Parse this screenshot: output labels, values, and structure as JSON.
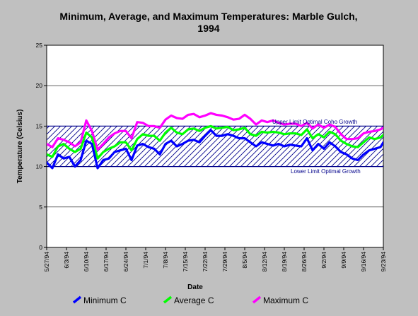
{
  "colors": {
    "background": "#c0c0c0",
    "plot_background": "#ffffff",
    "minimum": "#0000ff",
    "average": "#00ff00",
    "maximum": "#ff00ff",
    "band": "#00008b"
  },
  "chart_data": {
    "type": "line",
    "title": "Minimum, Average, and Maximum Temperatures: Marble Gulch, 1994",
    "title_lines": [
      "Minimum, Average, and Maximum Temperatures: Marble Gulch,",
      "1994"
    ],
    "xlabel": "Date",
    "ylabel": "Temperature (Celsius)",
    "ylim": [
      0,
      25
    ],
    "yticks": [
      0,
      5,
      10,
      15,
      20,
      25
    ],
    "xlim": [
      "1994-05-27",
      "1994-09-23"
    ],
    "x_tick_labels": [
      "5/27/94",
      "6/3/94",
      "6/10/94",
      "6/17/94",
      "6/24/94",
      "7/1/94",
      "7/8/94",
      "7/15/94",
      "7/22/94",
      "7/29/94",
      "8/5/94",
      "8/12/94",
      "8/19/94",
      "8/26/94",
      "9/2/94",
      "9/9/94",
      "9/16/94",
      "9/23/94"
    ],
    "grid": "horizontal",
    "legend_position": "bottom",
    "x": [
      "1994-05-27",
      "1994-05-29",
      "1994-05-31",
      "1994-06-02",
      "1994-06-04",
      "1994-06-06",
      "1994-06-08",
      "1994-06-10",
      "1994-06-12",
      "1994-06-14",
      "1994-06-16",
      "1994-06-18",
      "1994-06-20",
      "1994-06-22",
      "1994-06-24",
      "1994-06-26",
      "1994-06-28",
      "1994-06-30",
      "1994-07-02",
      "1994-07-04",
      "1994-07-06",
      "1994-07-08",
      "1994-07-10",
      "1994-07-12",
      "1994-07-14",
      "1994-07-16",
      "1994-07-18",
      "1994-07-20",
      "1994-07-22",
      "1994-07-24",
      "1994-07-26",
      "1994-07-28",
      "1994-07-30",
      "1994-08-01",
      "1994-08-03",
      "1994-08-05",
      "1994-08-07",
      "1994-08-09",
      "1994-08-11",
      "1994-08-13",
      "1994-08-15",
      "1994-08-17",
      "1994-08-19",
      "1994-08-21",
      "1994-08-23",
      "1994-08-25",
      "1994-08-27",
      "1994-08-29",
      "1994-08-31",
      "1994-09-02",
      "1994-09-04",
      "1994-09-06",
      "1994-09-08",
      "1994-09-10",
      "1994-09-12",
      "1994-09-14",
      "1994-09-16",
      "1994-09-18",
      "1994-09-20",
      "1994-09-22",
      "1994-09-23"
    ],
    "series": [
      {
        "name": "Minimum C",
        "color": "#0000ff",
        "values": [
          10.5,
          9.8,
          11.5,
          11.0,
          11.2,
          10.0,
          10.8,
          13.2,
          12.8,
          9.8,
          10.8,
          11.0,
          11.8,
          12.0,
          12.2,
          10.8,
          12.6,
          12.8,
          12.4,
          12.2,
          11.5,
          12.8,
          13.2,
          12.5,
          12.8,
          13.2,
          13.3,
          13.0,
          13.8,
          14.5,
          13.8,
          13.8,
          14.0,
          13.8,
          13.5,
          13.5,
          13.0,
          12.5,
          13.0,
          12.8,
          12.6,
          12.8,
          12.5,
          12.7,
          12.6,
          12.5,
          13.5,
          12.0,
          12.8,
          12.2,
          13.0,
          12.5,
          11.8,
          11.5,
          11.0,
          10.8,
          11.5,
          12.0,
          12.2,
          12.4,
          13.0
        ]
      },
      {
        "name": "Average C",
        "color": "#00ff00",
        "values": [
          11.5,
          11.2,
          12.5,
          12.8,
          12.2,
          11.8,
          12.2,
          14.2,
          13.6,
          11.0,
          11.8,
          12.2,
          12.5,
          13.0,
          13.0,
          12.0,
          13.4,
          14.0,
          13.8,
          13.8,
          13.2,
          14.2,
          14.8,
          14.2,
          14.0,
          14.6,
          14.7,
          14.4,
          14.8,
          15.0,
          14.7,
          14.8,
          14.9,
          14.5,
          14.6,
          14.8,
          14.0,
          13.8,
          14.3,
          14.2,
          14.3,
          14.2,
          14.0,
          14.1,
          14.1,
          13.9,
          14.6,
          13.5,
          14.0,
          13.6,
          14.3,
          14.0,
          13.2,
          12.8,
          12.5,
          12.4,
          13.0,
          13.6,
          13.4,
          13.6,
          13.9
        ]
      },
      {
        "name": "Maximum C",
        "color": "#ff00ff",
        "values": [
          12.8,
          12.4,
          13.5,
          13.3,
          13.0,
          12.5,
          13.0,
          15.7,
          14.4,
          12.1,
          12.8,
          13.6,
          14.1,
          14.4,
          14.4,
          13.5,
          15.5,
          15.4,
          15.0,
          15.0,
          14.8,
          15.8,
          16.3,
          16.0,
          15.9,
          16.4,
          16.5,
          16.1,
          16.3,
          16.6,
          16.4,
          16.3,
          16.1,
          15.8,
          15.9,
          16.4,
          15.9,
          15.2,
          15.7,
          15.5,
          15.7,
          15.4,
          15.2,
          15.3,
          15.3,
          15.0,
          15.4,
          14.7,
          15.2,
          14.8,
          15.2,
          14.9,
          14.0,
          13.4,
          13.4,
          13.5,
          14.1,
          14.3,
          14.4,
          14.6,
          14.8
        ]
      }
    ],
    "reference_band": {
      "lower": 10,
      "upper": 15,
      "upper_label": "Upper Limit Optimal Coho Growth",
      "lower_label": "Lower Limit Optimal Growth"
    }
  }
}
